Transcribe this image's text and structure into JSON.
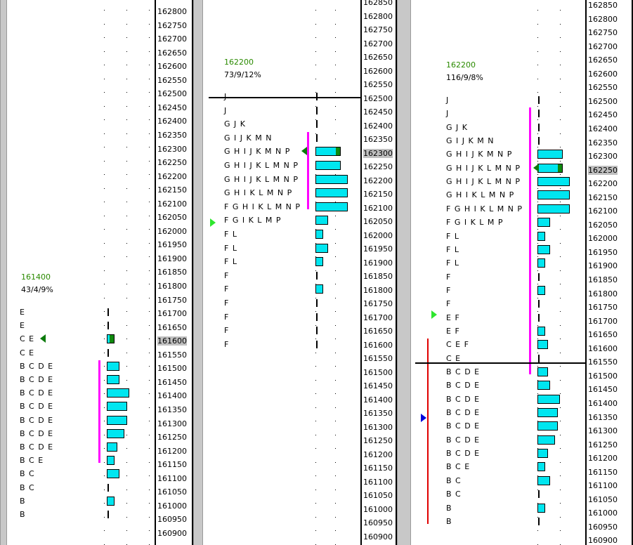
{
  "colors": {
    "value_area": "#ff00ff",
    "bar": "#00e6f0",
    "poc": "#0f8a0f",
    "price": "#2a8a00",
    "initial_balance": "#e00000"
  },
  "panels": [
    {
      "id": "p1",
      "header_price": "161400",
      "header_stats": "43/4/9%",
      "rows": [
        {
          "price": 161700,
          "letters": "E",
          "tpo": 1
        },
        {
          "price": 161650,
          "letters": "E",
          "tpo": 1
        },
        {
          "price": 161600,
          "letters": "CE",
          "tpo": 2,
          "poc": true
        },
        {
          "price": 161550,
          "letters": "CE",
          "tpo": 1
        },
        {
          "price": 161500,
          "letters": "BCDE",
          "tpo": 4
        },
        {
          "price": 161450,
          "letters": "BCDE",
          "tpo": 4
        },
        {
          "price": 161400,
          "letters": "BCDE",
          "tpo": 8
        },
        {
          "price": 161350,
          "letters": "BCDE",
          "tpo": 7
        },
        {
          "price": 161300,
          "letters": "BCDE",
          "tpo": 7
        },
        {
          "price": 161250,
          "letters": "BCDE",
          "tpo": 6
        },
        {
          "price": 161200,
          "letters": "BCDE",
          "tpo": 3
        },
        {
          "price": 161150,
          "letters": "BCE",
          "tpo": 2
        },
        {
          "price": 161100,
          "letters": "BC",
          "tpo": 4
        },
        {
          "price": 161050,
          "letters": "BC",
          "tpo": 1
        },
        {
          "price": 161000,
          "letters": "B",
          "tpo": 2
        },
        {
          "price": 160950,
          "letters": "B",
          "tpo": 1
        }
      ],
      "value_area": [
        161150,
        161500
      ]
    },
    {
      "id": "p2",
      "header_price": "162200",
      "header_stats": "73/9/12%",
      "rows": [
        {
          "price": 162500,
          "letters": "J",
          "tpo": 1
        },
        {
          "price": 162450,
          "letters": "J",
          "tpo": 1
        },
        {
          "price": 162400,
          "letters": "GJK",
          "tpo": 1
        },
        {
          "price": 162350,
          "letters": "GIJKMN",
          "tpo": 1
        },
        {
          "price": 162300,
          "letters": "GHIJKMNP",
          "tpo": 9,
          "poc": true
        },
        {
          "price": 162250,
          "letters": "GHIJKLMNP",
          "tpo": 9
        },
        {
          "price": 162200,
          "letters": "GHIJKLMNP",
          "tpo": 12
        },
        {
          "price": 162150,
          "letters": "GHIKLMNP",
          "tpo": 12
        },
        {
          "price": 162100,
          "letters": "FGHIKLMNP",
          "tpo": 12
        },
        {
          "price": 162050,
          "letters": "FGIKLMP",
          "tpo": 4
        },
        {
          "price": 162000,
          "letters": "FL",
          "tpo": 2
        },
        {
          "price": 161950,
          "letters": "FL",
          "tpo": 4
        },
        {
          "price": 161900,
          "letters": "FL",
          "tpo": 2
        },
        {
          "price": 161850,
          "letters": "F",
          "tpo": 1
        },
        {
          "price": 161800,
          "letters": "F",
          "tpo": 2
        },
        {
          "price": 161750,
          "letters": "F",
          "tpo": 1
        },
        {
          "price": 161700,
          "letters": "F",
          "tpo": 1
        },
        {
          "price": 161650,
          "letters": "F",
          "tpo": 1
        },
        {
          "price": 161600,
          "letters": "F",
          "tpo": 1
        }
      ],
      "value_area": [
        162100,
        162350
      ]
    },
    {
      "id": "p3",
      "header_price": "162200",
      "header_stats": "116/9/8%",
      "rows": [
        {
          "price": 162500,
          "letters": "J",
          "tpo": 1
        },
        {
          "price": 162450,
          "letters": "J",
          "tpo": 1
        },
        {
          "price": 162400,
          "letters": "GJK",
          "tpo": 1
        },
        {
          "price": 162350,
          "letters": "GIJKMN",
          "tpo": 1
        },
        {
          "price": 162300,
          "letters": "GHIJKMNP",
          "tpo": 9
        },
        {
          "price": 162250,
          "letters": "GHIJKLMNP",
          "tpo": 9,
          "poc": true
        },
        {
          "price": 162200,
          "letters": "GHIJKLMNP",
          "tpo": 12
        },
        {
          "price": 162150,
          "letters": "GHIKLMNP",
          "tpo": 12
        },
        {
          "price": 162100,
          "letters": "FGHIKLMNP",
          "tpo": 12
        },
        {
          "price": 162050,
          "letters": "FGIKLMP",
          "tpo": 4
        },
        {
          "price": 162000,
          "letters": "FL",
          "tpo": 2
        },
        {
          "price": 161950,
          "letters": "FL",
          "tpo": 4
        },
        {
          "price": 161900,
          "letters": "FL",
          "tpo": 2
        },
        {
          "price": 161850,
          "letters": "F",
          "tpo": 1
        },
        {
          "price": 161800,
          "letters": "F",
          "tpo": 2
        },
        {
          "price": 161750,
          "letters": "F",
          "tpo": 1
        },
        {
          "price": 161700,
          "letters": "EF",
          "tpo": 1
        },
        {
          "price": 161650,
          "letters": "EF",
          "tpo": 2
        },
        {
          "price": 161600,
          "letters": "CEF",
          "tpo": 3
        },
        {
          "price": 161550,
          "letters": "CE",
          "tpo": 1
        },
        {
          "price": 161500,
          "letters": "BCDE",
          "tpo": 3
        },
        {
          "price": 161450,
          "letters": "BCDE",
          "tpo": 4
        },
        {
          "price": 161400,
          "letters": "BCDE",
          "tpo": 8
        },
        {
          "price": 161350,
          "letters": "BCDE",
          "tpo": 7
        },
        {
          "price": 161300,
          "letters": "BCDE",
          "tpo": 7
        },
        {
          "price": 161250,
          "letters": "BCDE",
          "tpo": 6
        },
        {
          "price": 161200,
          "letters": "BCDE",
          "tpo": 3
        },
        {
          "price": 161150,
          "letters": "BCE",
          "tpo": 2
        },
        {
          "price": 161100,
          "letters": "BC",
          "tpo": 4
        },
        {
          "price": 161050,
          "letters": "BC",
          "tpo": 1
        },
        {
          "price": 161000,
          "letters": "B",
          "tpo": 2
        },
        {
          "price": 160950,
          "letters": "B",
          "tpo": 1
        }
      ],
      "value_area": [
        161500,
        162450
      ],
      "initial_balance": [
        160950,
        161600
      ]
    }
  ],
  "axes": [
    {
      "id": "a1",
      "ticks": [
        "162800",
        "162750",
        "162700",
        "162650",
        "162600",
        "162550",
        "162500",
        "162450",
        "162400",
        "162350",
        "162300",
        "162250",
        "162200",
        "162150",
        "162100",
        "162050",
        "162000",
        "161950",
        "161900",
        "161850",
        "161800",
        "161750",
        "161700",
        "161650",
        "161600",
        "161550",
        "161500",
        "161450",
        "161400",
        "161350",
        "161300",
        "161250",
        "161200",
        "161150",
        "161100",
        "161050",
        "161000",
        "160950",
        "160900"
      ],
      "highlight": "161600"
    },
    {
      "id": "a2",
      "ticks": [
        "162850",
        "162800",
        "162750",
        "162700",
        "162650",
        "162600",
        "162550",
        "162500",
        "162450",
        "162400",
        "162350",
        "162300",
        "162250",
        "162200",
        "162150",
        "162100",
        "162050",
        "162000",
        "161950",
        "161900",
        "161850",
        "161800",
        "161750",
        "161700",
        "161650",
        "161600",
        "161550",
        "161500",
        "161450",
        "161400",
        "161350",
        "161300",
        "161250",
        "161200",
        "161150",
        "161100",
        "161050",
        "161000",
        "160950",
        "160900"
      ],
      "highlight": "162300"
    },
    {
      "id": "a3",
      "ticks": [
        "162850",
        "162800",
        "162750",
        "162700",
        "162650",
        "162600",
        "162550",
        "162500",
        "162450",
        "162400",
        "162350",
        "162300",
        "162250",
        "162200",
        "162150",
        "162100",
        "162050",
        "162000",
        "161950",
        "161900",
        "161850",
        "161800",
        "161750",
        "161700",
        "161650",
        "161600",
        "161550",
        "161500",
        "161450",
        "161400",
        "161350",
        "161300",
        "161250",
        "161200",
        "161150",
        "161100",
        "161050",
        "161000",
        "160950",
        "160900"
      ],
      "highlight": "162250"
    }
  ]
}
